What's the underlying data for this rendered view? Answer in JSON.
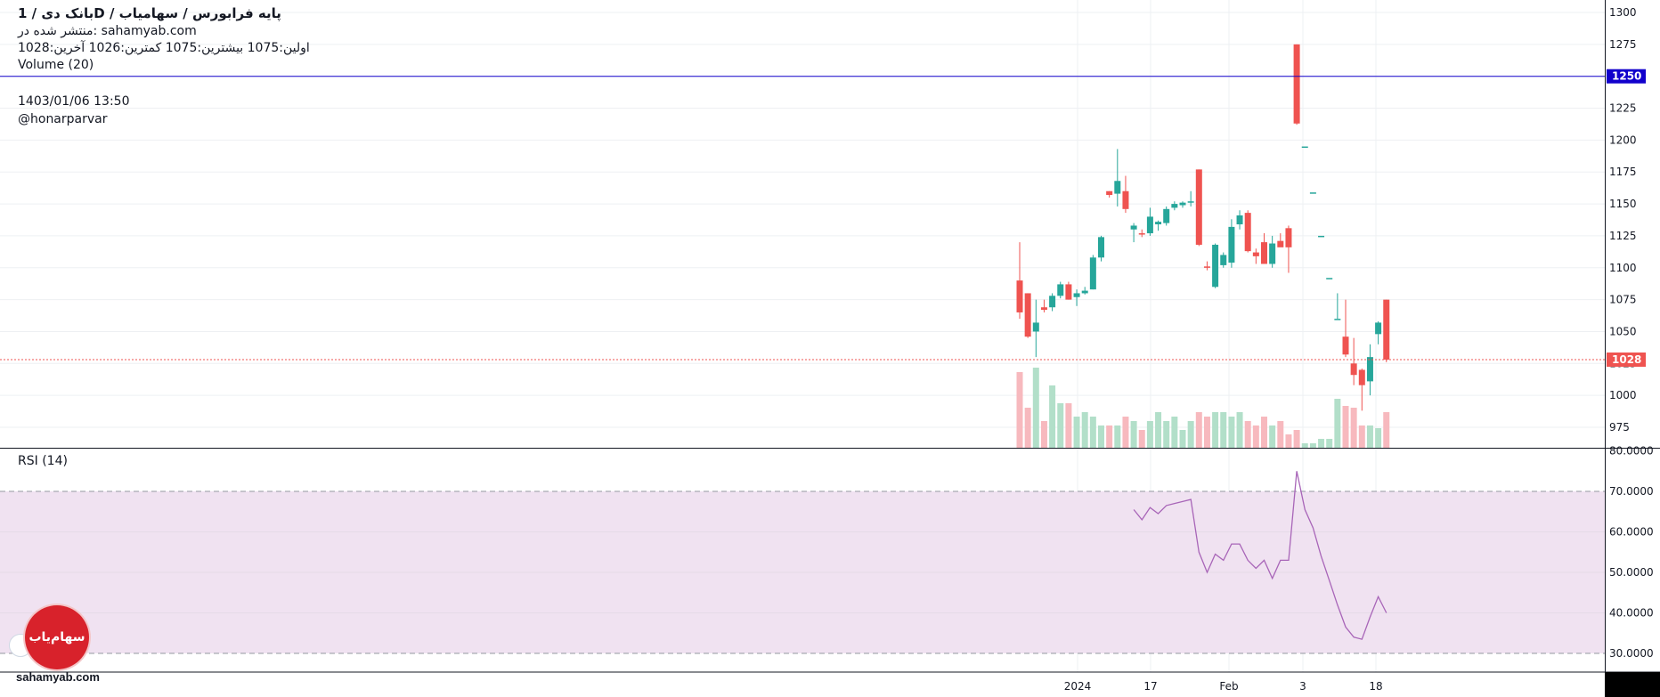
{
  "header": {
    "title": "بانک دی /  1D /  پایه فرابورس / سهامیاب",
    "published": "منتشر شده در: sahamyab.com",
    "ohlc": "اولین:1075  بیشترین:1075  کمترین:1026  آخرین:1028",
    "volume_label": "Volume (20)",
    "datetime": "1403/01/06 13:50",
    "author": "@honarparvar"
  },
  "footer": {
    "site": "sahamyab.com",
    "logo_text": "سهام‌یاب"
  },
  "colors": {
    "up": "#26a69a",
    "down": "#ef5350",
    "up_volume": "#b2dfc9",
    "down_volume": "#f7b9be",
    "rsi_line": "#a865b8",
    "rsi_band": "#f0e2f1",
    "level_line": "#1100cc",
    "last_price": "#ef5350"
  },
  "chart_data": [
    {
      "type": "candlestick",
      "price_range": [
        962,
        1310
      ],
      "y_ticks": [
        975,
        1000,
        1025,
        1050,
        1075,
        1100,
        1125,
        1150,
        1175,
        1200,
        1225,
        1250,
        1275,
        1300
      ],
      "x_ticks": [
        "2024",
        "17",
        "Feb",
        "3",
        "18"
      ],
      "horizontal_line": {
        "value": 1250,
        "label": "1250"
      },
      "last_price": {
        "value": 1028,
        "label": "1028"
      },
      "candles": [
        {
          "o": 1090,
          "h": 1120,
          "l": 1060,
          "c": 1065
        },
        {
          "o": 1080,
          "h": 1080,
          "l": 1045,
          "c": 1046
        },
        {
          "o": 1050,
          "h": 1075,
          "l": 1030,
          "c": 1057
        },
        {
          "o": 1069,
          "h": 1075,
          "l": 1065,
          "c": 1067
        },
        {
          "o": 1069,
          "h": 1080,
          "l": 1066,
          "c": 1078
        },
        {
          "o": 1078,
          "h": 1089,
          "l": 1076,
          "c": 1087
        },
        {
          "o": 1087,
          "h": 1089,
          "l": 1075,
          "c": 1075
        },
        {
          "o": 1077,
          "h": 1083,
          "l": 1070,
          "c": 1080
        },
        {
          "o": 1080,
          "h": 1085,
          "l": 1079,
          "c": 1082
        },
        {
          "o": 1083,
          "h": 1110,
          "l": 1083,
          "c": 1108
        },
        {
          "o": 1108,
          "h": 1125,
          "l": 1105,
          "c": 1124
        },
        {
          "o": 1160,
          "h": 1160,
          "l": 1155,
          "c": 1157
        },
        {
          "o": 1158,
          "h": 1193,
          "l": 1148,
          "c": 1168
        },
        {
          "o": 1160,
          "h": 1172,
          "l": 1143,
          "c": 1146
        },
        {
          "o": 1130,
          "h": 1135,
          "l": 1120,
          "c": 1133
        },
        {
          "o": 1127,
          "h": 1130,
          "l": 1124,
          "c": 1126
        },
        {
          "o": 1127,
          "h": 1147,
          "l": 1125,
          "c": 1140
        },
        {
          "o": 1134,
          "h": 1137,
          "l": 1129,
          "c": 1136
        },
        {
          "o": 1135,
          "h": 1148,
          "l": 1133,
          "c": 1146
        },
        {
          "o": 1147,
          "h": 1152,
          "l": 1145,
          "c": 1150
        },
        {
          "o": 1149,
          "h": 1152,
          "l": 1147,
          "c": 1151
        },
        {
          "o": 1152,
          "h": 1160,
          "l": 1148,
          "c": 1152
        },
        {
          "o": 1177,
          "h": 1177,
          "l": 1117,
          "c": 1118
        },
        {
          "o": 1101,
          "h": 1105,
          "l": 1098,
          "c": 1100
        },
        {
          "o": 1085,
          "h": 1119,
          "l": 1084,
          "c": 1118
        },
        {
          "o": 1102,
          "h": 1112,
          "l": 1100,
          "c": 1110
        },
        {
          "o": 1104,
          "h": 1138,
          "l": 1100,
          "c": 1132
        },
        {
          "o": 1134,
          "h": 1145,
          "l": 1130,
          "c": 1141
        },
        {
          "o": 1143,
          "h": 1145,
          "l": 1112,
          "c": 1113
        },
        {
          "o": 1112,
          "h": 1115,
          "l": 1103,
          "c": 1109
        },
        {
          "o": 1120,
          "h": 1127,
          "l": 1104,
          "c": 1103
        },
        {
          "o": 1103,
          "h": 1125,
          "l": 1100,
          "c": 1119
        },
        {
          "o": 1121,
          "h": 1127,
          "l": 1118,
          "c": 1116
        },
        {
          "o": 1131,
          "h": 1133,
          "l": 1096,
          "c": 1116
        },
        {
          "o": 1275,
          "h": 1275,
          "l": 1212,
          "c": 1213
        },
        {
          "o": 1195,
          "h": 1195,
          "l": 1195,
          "c": 1195
        },
        {
          "o": 1159,
          "h": 1159,
          "l": 1159,
          "c": 1159
        },
        {
          "o": 1125,
          "h": 1125,
          "l": 1125,
          "c": 1125
        },
        {
          "o": 1092,
          "h": 1092,
          "l": 1092,
          "c": 1092
        },
        {
          "o": 1060,
          "h": 1080,
          "l": 1060,
          "c": 1060
        },
        {
          "o": 1046,
          "h": 1075,
          "l": 1030,
          "c": 1032
        },
        {
          "o": 1025,
          "h": 1045,
          "l": 1008,
          "c": 1016
        },
        {
          "o": 1020,
          "h": 1021,
          "l": 988,
          "c": 1008
        },
        {
          "o": 1011,
          "h": 1040,
          "l": 1000,
          "c": 1030
        },
        {
          "o": 1048,
          "h": 1058,
          "l": 1040,
          "c": 1057
        },
        {
          "o": 1075,
          "h": 1075,
          "l": 1026,
          "c": 1028
        }
      ]
    },
    {
      "type": "bar",
      "title": "Volume (20)",
      "values": [
        85,
        45,
        90,
        30,
        70,
        50,
        50,
        35,
        40,
        35,
        25,
        25,
        25,
        35,
        30,
        20,
        30,
        40,
        30,
        35,
        20,
        30,
        40,
        35,
        40,
        40,
        35,
        40,
        30,
        25,
        35,
        25,
        30,
        15,
        20,
        5,
        5,
        10,
        10,
        55,
        47,
        45,
        25,
        25,
        22,
        40
      ]
    },
    {
      "type": "line",
      "title": "RSI (14)",
      "ylim": [
        27,
        81
      ],
      "y_ticks": [
        "30.0000",
        "40.0000",
        "50.0000",
        "60.0000",
        "70.0000",
        "80.0000"
      ],
      "band": [
        30,
        70
      ],
      "values": [
        null,
        null,
        null,
        null,
        null,
        null,
        null,
        null,
        null,
        null,
        null,
        null,
        null,
        null,
        65.5,
        63,
        66,
        64.5,
        66.5,
        67,
        67.5,
        68,
        55,
        50,
        54.5,
        53,
        57,
        57,
        53,
        51,
        53,
        48.5,
        53,
        53,
        75,
        65.5,
        61,
        54,
        48,
        42,
        36.5,
        34,
        33.5,
        39,
        44,
        40
      ]
    }
  ]
}
